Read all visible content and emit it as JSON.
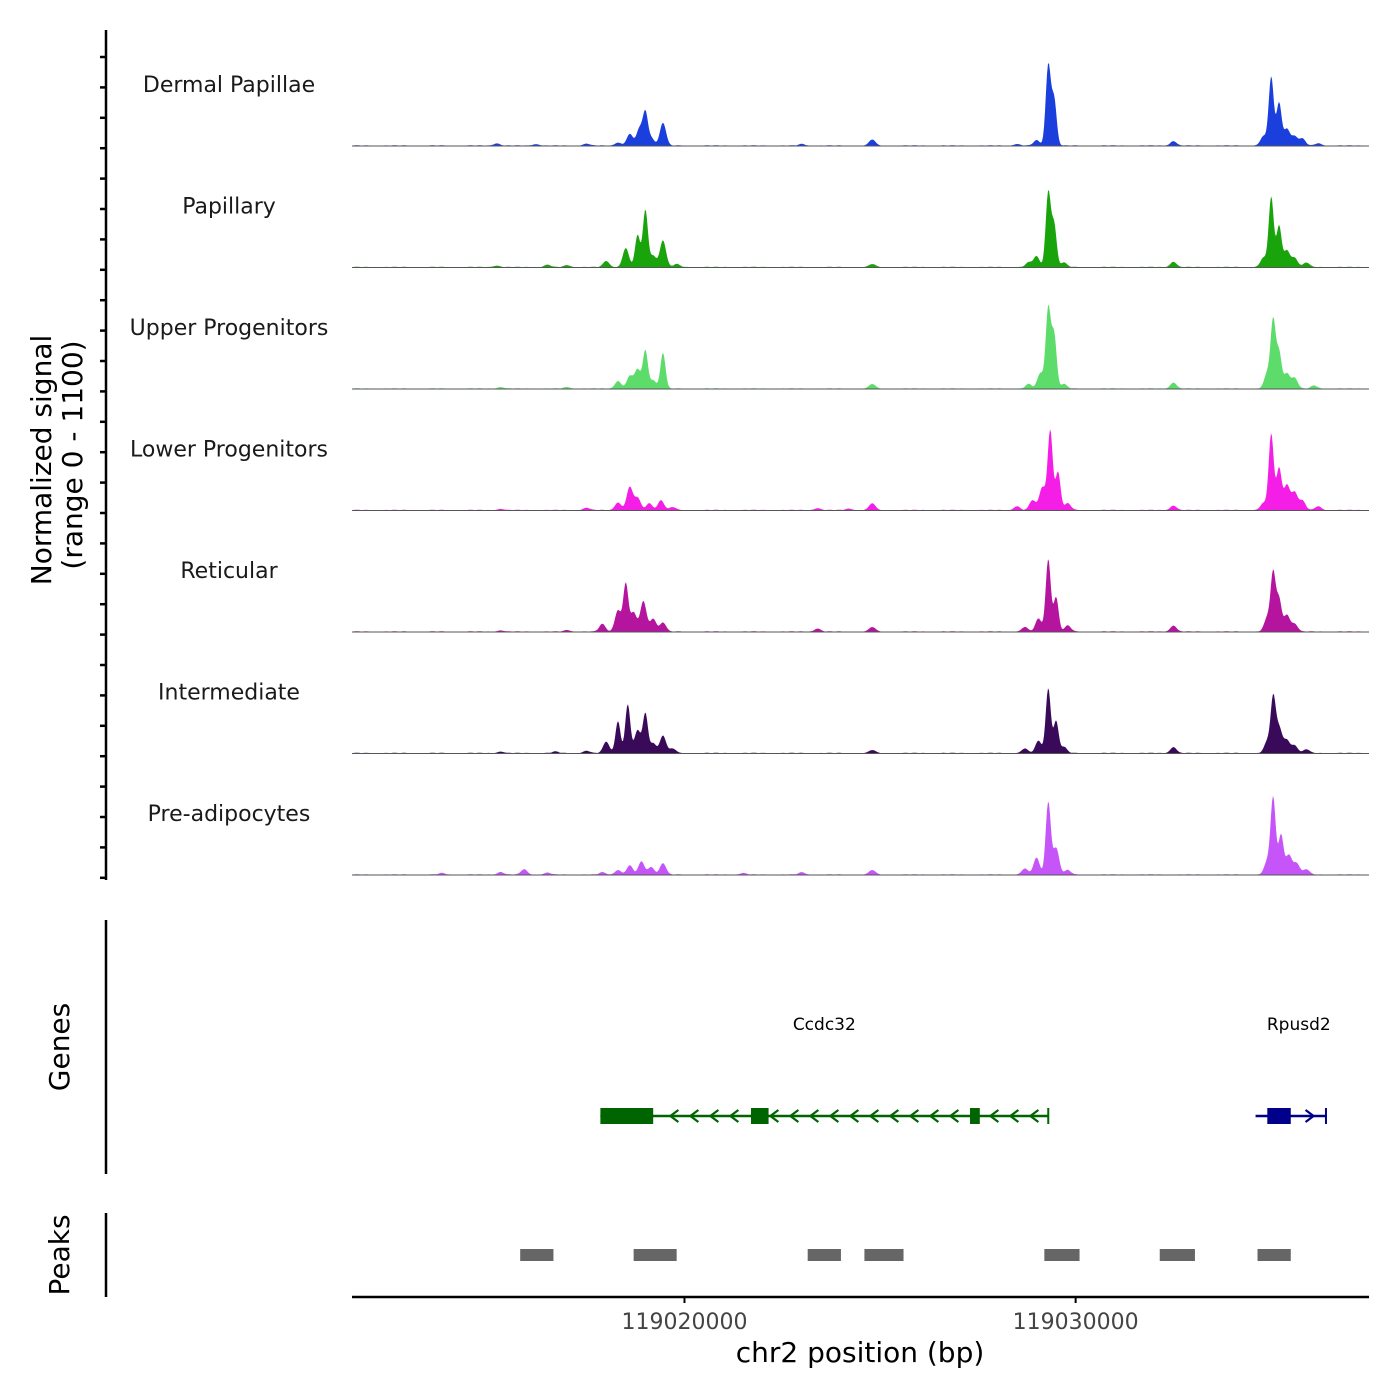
{
  "chart_data": {
    "type": "area",
    "title": "",
    "coverage": {
      "ylabel_line1": "Normalized signal",
      "ylabel_line2": "(range 0 - 1100)",
      "ylim": [
        0,
        1100
      ],
      "xlim": [
        119011500,
        119037500
      ],
      "tracks": [
        {
          "name": "Dermal Papillae",
          "color": "#1a3fdc",
          "peaks": [
            [
              119015200,
              30
            ],
            [
              119016200,
              20
            ],
            [
              119017500,
              25
            ],
            [
              119018300,
              40
            ],
            [
              119018600,
              150
            ],
            [
              119018850,
              220
            ],
            [
              119019000,
              420
            ],
            [
              119019150,
              100
            ],
            [
              119019450,
              300
            ],
            [
              119023000,
              20
            ],
            [
              119024800,
              80
            ],
            [
              119028500,
              20
            ],
            [
              119029000,
              70
            ],
            [
              119029300,
              1050
            ],
            [
              119029450,
              600
            ],
            [
              119032500,
              60
            ],
            [
              119034800,
              120
            ],
            [
              119035000,
              900
            ],
            [
              119035200,
              560
            ],
            [
              119035400,
              220
            ],
            [
              119035600,
              120
            ],
            [
              119035800,
              90
            ],
            [
              119036200,
              30
            ]
          ]
        },
        {
          "name": "Papillary",
          "color": "#1aa40c",
          "peaks": [
            [
              119015200,
              20
            ],
            [
              119016500,
              30
            ],
            [
              119017000,
              25
            ],
            [
              119018000,
              80
            ],
            [
              119018500,
              250
            ],
            [
              119018800,
              420
            ],
            [
              119019000,
              750
            ],
            [
              119019200,
              150
            ],
            [
              119019450,
              350
            ],
            [
              119019800,
              40
            ],
            [
              119024800,
              40
            ],
            [
              119028800,
              60
            ],
            [
              119029000,
              140
            ],
            [
              119029300,
              980
            ],
            [
              119029450,
              550
            ],
            [
              119029700,
              60
            ],
            [
              119032500,
              70
            ],
            [
              119034800,
              120
            ],
            [
              119035000,
              920
            ],
            [
              119035200,
              540
            ],
            [
              119035400,
              220
            ],
            [
              119035600,
              120
            ],
            [
              119035900,
              60
            ]
          ]
        },
        {
          "name": "Upper Progenitors",
          "color": "#5ddc6c",
          "peaks": [
            [
              119015300,
              20
            ],
            [
              119017000,
              20
            ],
            [
              119018300,
              100
            ],
            [
              119018600,
              160
            ],
            [
              119018800,
              250
            ],
            [
              119019000,
              500
            ],
            [
              119019200,
              110
            ],
            [
              119019450,
              470
            ],
            [
              119024800,
              60
            ],
            [
              119028800,
              60
            ],
            [
              119029100,
              200
            ],
            [
              119029300,
              1050
            ],
            [
              119029450,
              700
            ],
            [
              119029700,
              60
            ],
            [
              119032500,
              80
            ],
            [
              119034900,
              200
            ],
            [
              119035050,
              880
            ],
            [
              119035200,
              470
            ],
            [
              119035400,
              200
            ],
            [
              119035600,
              140
            ],
            [
              119036100,
              40
            ]
          ]
        },
        {
          "name": "Lower Progenitors",
          "color": "#f51ee6",
          "peaks": [
            [
              119015300,
              15
            ],
            [
              119017500,
              30
            ],
            [
              119018300,
              100
            ],
            [
              119018600,
              300
            ],
            [
              119018800,
              160
            ],
            [
              119019100,
              90
            ],
            [
              119019400,
              130
            ],
            [
              119019700,
              40
            ],
            [
              119023400,
              25
            ],
            [
              119024200,
              20
            ],
            [
              119024800,
              90
            ],
            [
              119028500,
              50
            ],
            [
              119028900,
              130
            ],
            [
              119029150,
              300
            ],
            [
              119029350,
              1050
            ],
            [
              119029550,
              500
            ],
            [
              119029800,
              90
            ],
            [
              119032500,
              60
            ],
            [
              119034800,
              90
            ],
            [
              119035000,
              1000
            ],
            [
              119035200,
              550
            ],
            [
              119035400,
              330
            ],
            [
              119035600,
              230
            ],
            [
              119035800,
              120
            ],
            [
              119036200,
              50
            ]
          ]
        },
        {
          "name": "Reticular",
          "color": "#b4149e",
          "peaks": [
            [
              119015300,
              15
            ],
            [
              119017000,
              20
            ],
            [
              119017900,
              100
            ],
            [
              119018300,
              280
            ],
            [
              119018500,
              630
            ],
            [
              119018700,
              250
            ],
            [
              119018950,
              400
            ],
            [
              119019200,
              170
            ],
            [
              119019450,
              120
            ],
            [
              119023400,
              40
            ],
            [
              119024800,
              60
            ],
            [
              119028700,
              60
            ],
            [
              119029050,
              170
            ],
            [
              119029300,
              950
            ],
            [
              119029500,
              450
            ],
            [
              119029800,
              80
            ],
            [
              119032500,
              80
            ],
            [
              119034900,
              180
            ],
            [
              119035050,
              760
            ],
            [
              119035200,
              420
            ],
            [
              119035400,
              220
            ],
            [
              119035600,
              100
            ]
          ]
        },
        {
          "name": "Intermediate",
          "color": "#3a0a5a",
          "peaks": [
            [
              119015300,
              20
            ],
            [
              119016700,
              20
            ],
            [
              119017500,
              30
            ],
            [
              119018000,
              150
            ],
            [
              119018300,
              420
            ],
            [
              119018550,
              640
            ],
            [
              119018800,
              300
            ],
            [
              119019000,
              520
            ],
            [
              119019200,
              130
            ],
            [
              119019450,
              230
            ],
            [
              119019700,
              60
            ],
            [
              119024800,
              40
            ],
            [
              119028700,
              60
            ],
            [
              119029050,
              160
            ],
            [
              119029300,
              850
            ],
            [
              119029500,
              420
            ],
            [
              119029700,
              80
            ],
            [
              119032500,
              80
            ],
            [
              119034900,
              150
            ],
            [
              119035050,
              700
            ],
            [
              119035200,
              330
            ],
            [
              119035400,
              170
            ],
            [
              119035600,
              100
            ],
            [
              119035900,
              50
            ]
          ]
        },
        {
          "name": "Pre-adipocytes",
          "color": "#c555f8",
          "peaks": [
            [
              119013800,
              20
            ],
            [
              119015300,
              35
            ],
            [
              119015900,
              70
            ],
            [
              119016500,
              25
            ],
            [
              119017900,
              30
            ],
            [
              119018300,
              60
            ],
            [
              119018600,
              120
            ],
            [
              119018900,
              170
            ],
            [
              119019150,
              100
            ],
            [
              119019450,
              150
            ],
            [
              119021500,
              20
            ],
            [
              119023000,
              30
            ],
            [
              119024800,
              60
            ],
            [
              119028700,
              80
            ],
            [
              119029000,
              220
            ],
            [
              119029300,
              950
            ],
            [
              119029500,
              350
            ],
            [
              119029800,
              60
            ],
            [
              119034900,
              170
            ],
            [
              119035050,
              1000
            ],
            [
              119035250,
              520
            ],
            [
              119035450,
              260
            ],
            [
              119035650,
              150
            ],
            [
              119035900,
              70
            ]
          ]
        }
      ]
    },
    "genes": {
      "ylabel": "Genes",
      "items": [
        {
          "name": "Ccdc32",
          "strand": "-",
          "color": "#006400",
          "start": 119017850,
          "end": 119029300,
          "exons": [
            [
              119017850,
              119019200
            ],
            [
              119021700,
              119022150
            ],
            [
              119027300,
              119027550
            ]
          ]
        },
        {
          "name": "Rpusd2",
          "strand": "+",
          "color": "#00008b",
          "start": 119034600,
          "end": 119036400,
          "exons": [
            [
              119034900,
              119035500
            ]
          ]
        }
      ]
    },
    "peaks": {
      "ylabel": "Peaks",
      "color": "#666666",
      "regions": [
        [
          119015800,
          119016650
        ],
        [
          119018700,
          119019800
        ],
        [
          119023150,
          119024000
        ],
        [
          119024600,
          119025600
        ],
        [
          119029200,
          119030100
        ],
        [
          119032150,
          119033050
        ],
        [
          119034650,
          119035500
        ]
      ]
    },
    "x_axis": {
      "xlabel": "chr2 position (bp)",
      "ticks": [
        119020000,
        119030000
      ],
      "tick_labels": [
        "119020000",
        "119030000"
      ]
    }
  }
}
